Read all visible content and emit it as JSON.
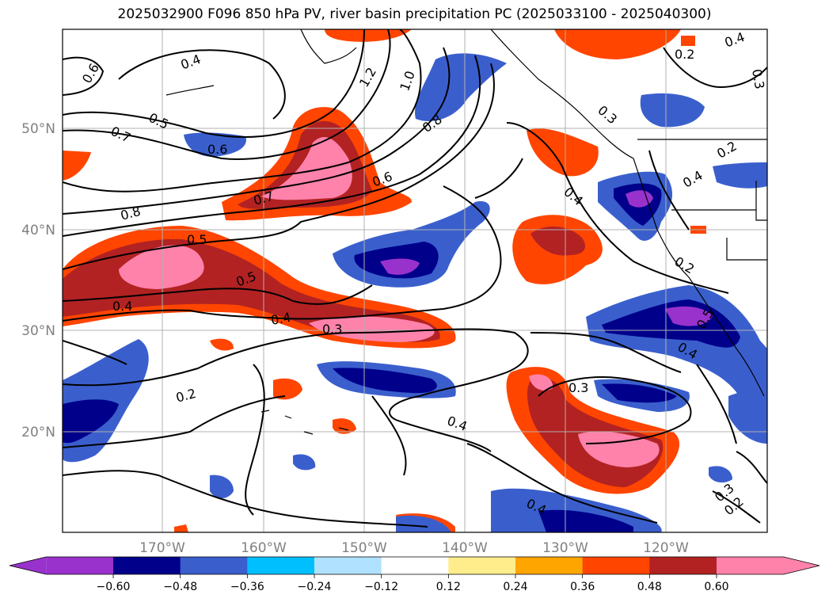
{
  "title": "2025032900 F096 850 hPa PV, river basin precipitation PC (2025033100 - 2025040300)",
  "lat_ticks": [
    "50°N",
    "40°N",
    "30°N",
    "20°N"
  ],
  "lon_ticks": [
    "170°W",
    "160°W",
    "150°W",
    "140°W",
    "130°W",
    "120°W"
  ],
  "contour_labels": [
    "0.6",
    "0.4",
    "0.5",
    "0.7",
    "1.2",
    "1.0",
    "0.8",
    "0.6",
    "0.8",
    "0.7",
    "0.6",
    "0.5",
    "0.5",
    "0.4",
    "0.4",
    "0.3",
    "0.2",
    "0.4",
    "0.3",
    "0.4",
    "0.4",
    "0.2",
    "0.3",
    "0.2",
    "0.5",
    "0.2",
    "0.4",
    "0.4",
    "0.3",
    "0.2",
    "0.4",
    "0.3"
  ],
  "colorbar": {
    "ticks": [
      "−0.60",
      "−0.48",
      "−0.36",
      "−0.24",
      "−0.12",
      "0.12",
      "0.24",
      "0.36",
      "0.48",
      "0.60"
    ],
    "colors": [
      "#9932cc",
      "#00008b",
      "#3a5fcd",
      "#00bfff",
      "#b0e2ff",
      "#ffffff",
      "#ffec8b",
      "#ffa500",
      "#ff4500",
      "#b22222",
      "#ff82ab"
    ]
  }
}
